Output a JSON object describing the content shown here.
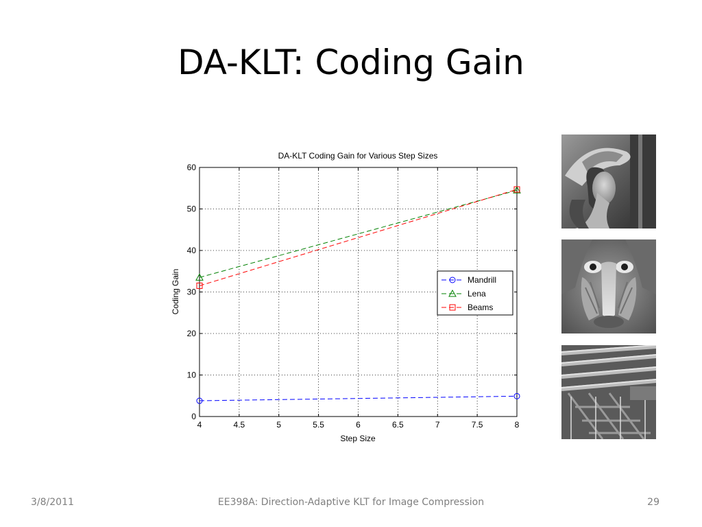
{
  "slide": {
    "title": "DA-KLT: Coding Gain",
    "footer_date": "3/8/2011",
    "footer_center": "EE398A: Direction-Adaptive KLT for Image Compression",
    "footer_page": "29"
  },
  "images": [
    {
      "name": "lena-photo",
      "kind": "grayscale portrait"
    },
    {
      "name": "mandrill-photo",
      "kind": "grayscale baboon face"
    },
    {
      "name": "beams-photo",
      "kind": "grayscale pipes and beams"
    }
  ],
  "chart_data": {
    "type": "line",
    "title": "DA-KLT Coding Gain for Various Step Sizes",
    "xlabel": "Step Size",
    "ylabel": "Coding Gain",
    "xlim": [
      4,
      8
    ],
    "ylim": [
      0,
      60
    ],
    "xticks": [
      "4",
      "4.5",
      "5",
      "5.5",
      "6",
      "6.5",
      "7",
      "7.5",
      "8"
    ],
    "yticks": [
      "0",
      "10",
      "20",
      "30",
      "40",
      "50",
      "60"
    ],
    "grid": true,
    "legend_position": "right",
    "series": [
      {
        "name": "Mandrill",
        "color": "#0000ff",
        "marker": "circle",
        "x": [
          4,
          8
        ],
        "y": [
          3.8,
          4.9
        ]
      },
      {
        "name": "Lena",
        "color": "#008000",
        "marker": "triangle",
        "x": [
          4,
          8
        ],
        "y": [
          33.5,
          54.5
        ]
      },
      {
        "name": "Beams",
        "color": "#ff0000",
        "marker": "square",
        "x": [
          4,
          8
        ],
        "y": [
          31.5,
          54.7
        ]
      }
    ]
  }
}
